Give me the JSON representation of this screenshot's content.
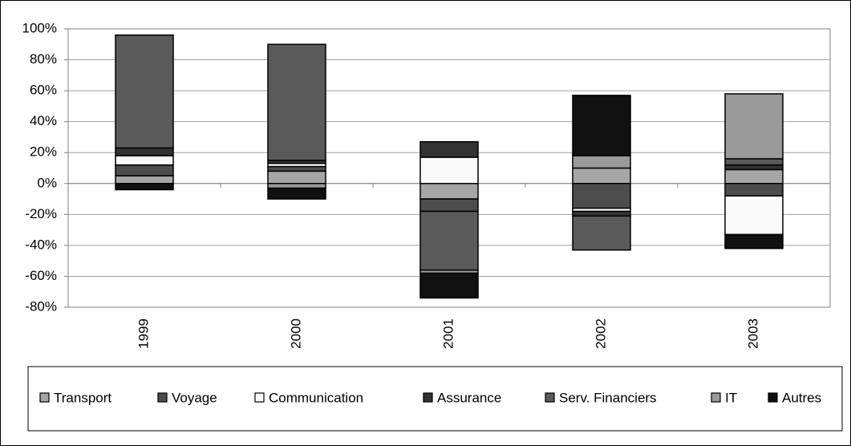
{
  "chart_data": {
    "type": "stacked_bar",
    "categories": [
      "1999",
      "2000",
      "2001",
      "2002",
      "2003"
    ],
    "series": [
      {
        "name": "Transport",
        "color": "#a6a6a6",
        "values": [
          5,
          8,
          -10,
          10,
          9
        ]
      },
      {
        "name": "Voyage",
        "color": "#4d4d4d",
        "values": [
          7,
          3,
          -8,
          -16,
          -8
        ]
      },
      {
        "name": "Communication",
        "color": "#fafafa",
        "values": [
          6,
          2,
          17,
          -2,
          -25
        ]
      },
      {
        "name": "Assurance",
        "color": "#333333",
        "values": [
          5,
          2,
          10,
          -3,
          3
        ]
      },
      {
        "name": "Serv. Financiers",
        "color": "#5a5a5a",
        "values": [
          73,
          75,
          -38,
          -22,
          4
        ]
      },
      {
        "name": "IT",
        "color": "#9a9a9a",
        "values": [
          0,
          -3,
          -2,
          8,
          42
        ]
      },
      {
        "name": "Autres",
        "color": "#111111",
        "values": [
          -4,
          -7,
          -16,
          39,
          -9
        ]
      }
    ],
    "ylim": [
      -80,
      100
    ],
    "yticks": [
      {
        "value": -80,
        "label": "-80%"
      },
      {
        "value": -60,
        "label": "-60%"
      },
      {
        "value": -40,
        "label": "-40%"
      },
      {
        "value": -20,
        "label": "-20%"
      },
      {
        "value": 0,
        "label": "0%"
      },
      {
        "value": 20,
        "label": "20%"
      },
      {
        "value": 40,
        "label": "40%"
      },
      {
        "value": 60,
        "label": "60%"
      },
      {
        "value": 80,
        "label": "80%"
      },
      {
        "value": 100,
        "label": "100%"
      }
    ],
    "grid": true
  }
}
